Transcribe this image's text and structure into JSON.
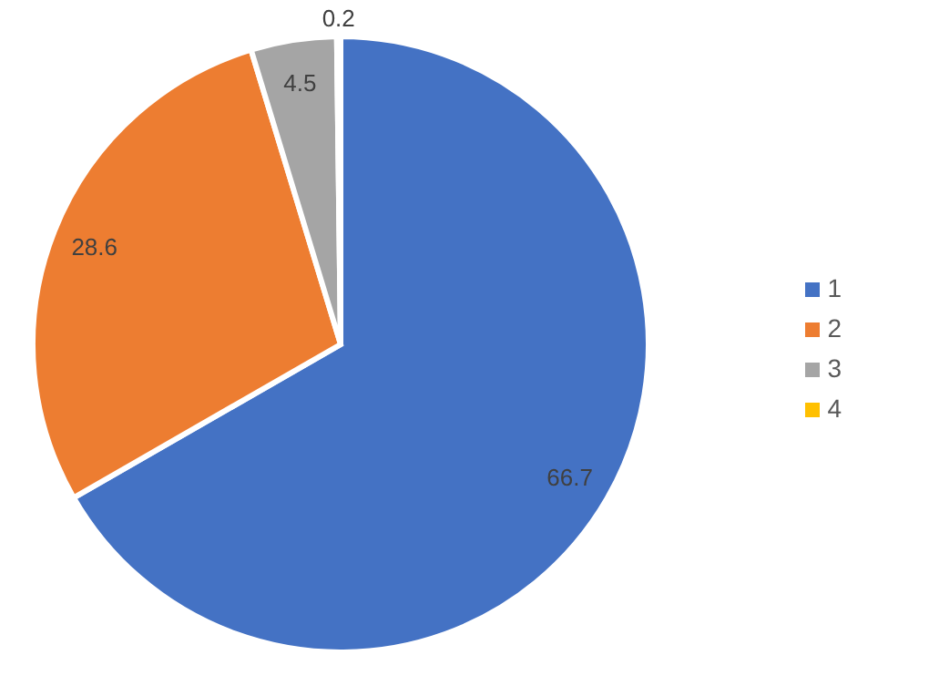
{
  "chart_data": {
    "type": "pie",
    "categories": [
      "1",
      "2",
      "3",
      "4"
    ],
    "values": [
      66.7,
      28.6,
      4.5,
      0.2
    ],
    "colors": [
      "#4472c4",
      "#ed7d31",
      "#a5a5a5",
      "#ffc000"
    ],
    "data_labels": true,
    "legend": "right"
  }
}
